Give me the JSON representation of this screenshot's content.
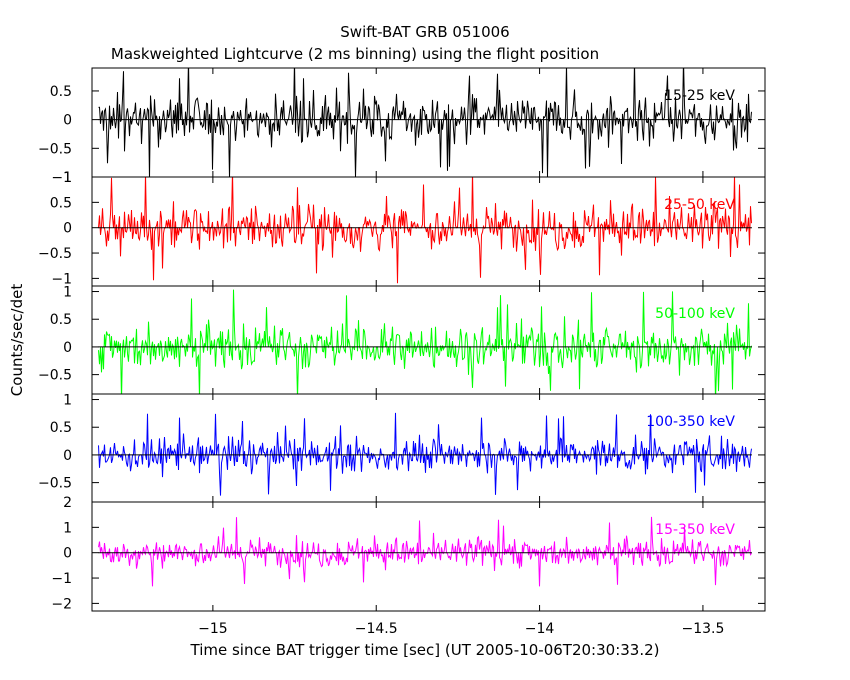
{
  "chart_data": {
    "type": "line",
    "title": "Swift-BAT GRB 051006",
    "subtitle": "Maskweighted Lightcurve (2 ms binning) using the flight position",
    "xlabel": "Time since BAT trigger time [sec] (UT 2005-10-06T20:30:33.2)",
    "ylabel": "Counts/sec/det",
    "xlim": [
      -15.37,
      -13.31
    ],
    "xticks": [
      -15,
      -14.5,
      -14,
      -13.5
    ],
    "xtick_labels": [
      "−15",
      "−14.5",
      "−14",
      "−13.5"
    ],
    "data_xrange": [
      -15.35,
      -13.35
    ],
    "grid": false,
    "panels": [
      {
        "name": "15-25 keV",
        "color": "#000000",
        "ylim": [
          -1.0,
          0.9
        ],
        "yticks": [
          0.5,
          0,
          -0.5,
          -1
        ],
        "ytick_labels": [
          "0.5",
          "0",
          "−0.5",
          "−1"
        ],
        "amplitude": 0.55
      },
      {
        "name": "25-50 keV",
        "color": "#ff0000",
        "ylim": [
          -1.15,
          1.0
        ],
        "yticks": [
          1,
          0.5,
          0,
          -0.5,
          -1
        ],
        "ytick_labels": [
          "1",
          "0.5",
          "0",
          "−0.5",
          "−1"
        ],
        "amplitude": 0.6
      },
      {
        "name": "50-100 keV",
        "color": "#00ff00",
        "ylim": [
          -0.85,
          1.1
        ],
        "yticks": [
          1,
          0.5,
          0,
          -0.5
        ],
        "ytick_labels": [
          "1",
          "0.5",
          "0",
          "−0.5"
        ],
        "amplitude": 0.55
      },
      {
        "name": "100-350 keV",
        "color": "#0000ff",
        "ylim": [
          -0.85,
          1.1
        ],
        "yticks": [
          1,
          0.5,
          0,
          -0.5
        ],
        "ytick_labels": [
          "1",
          "0.5",
          "0",
          "−0.5"
        ],
        "amplitude": 0.4
      },
      {
        "name": "15-350 keV",
        "color": "#ff00ff",
        "ylim": [
          -2.3,
          2.0
        ],
        "yticks": [
          2,
          1,
          0,
          -1,
          -2
        ],
        "ytick_labels": [
          "2",
          "1",
          "0",
          "−1",
          "−2"
        ],
        "amplitude": 0.75
      }
    ]
  }
}
